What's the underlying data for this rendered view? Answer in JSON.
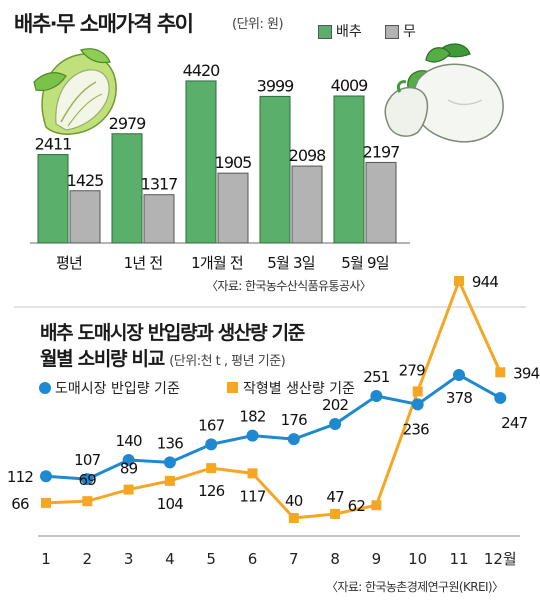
{
  "top": {
    "title": "배추·무 소매가격 추이",
    "unit": "(단위: 원)",
    "legend": [
      {
        "label": "배추",
        "color": "#5ab06a"
      },
      {
        "label": "무",
        "color": "#b3b3b3"
      }
    ],
    "source": "〈자료: 한국농수산식품유통공사〉",
    "colors": {
      "cabbage": "#5ab06a",
      "radish": "#b3b3b3",
      "cabbage_edge": "#2f6b3a",
      "radish_edge": "#555555"
    }
  },
  "bottom": {
    "title_line1": "배추 도매시장 반입량과 생산량 기준",
    "title_line2": "월별 소비량 비교",
    "unit": "(단위:천 t , 평년 기준)",
    "legend": [
      {
        "label": "도매시장 반입량 기준",
        "color": "#1e88d0",
        "marker": "circle"
      },
      {
        "label": "작형별 생산량 기준",
        "color": "#f5a623",
        "marker": "square"
      }
    ],
    "source": "〈자료: 한국농촌경제연구원(KREI)〉"
  },
  "chart_data": [
    {
      "type": "bar",
      "title": "배추·무 소매가격 추이",
      "ylabel": "(단위: 원)",
      "categories": [
        "평년",
        "1년 전",
        "1개월 전",
        "5월 3일",
        "5월 9일"
      ],
      "series": [
        {
          "name": "배추",
          "values": [
            2411,
            2979,
            4420,
            3999,
            4009
          ]
        },
        {
          "name": "무",
          "values": [
            1425,
            1317,
            1905,
            2098,
            2197
          ]
        }
      ],
      "ylim": [
        0,
        4500
      ],
      "grid": false,
      "legend_position": "top"
    },
    {
      "type": "line",
      "title": "배추 도매시장 반입량과 생산량 기준 월별 소비량 비교",
      "ylabel": "(단위:천 t , 평년 기준)",
      "categories": [
        "1",
        "2",
        "3",
        "4",
        "5",
        "6",
        "7",
        "8",
        "9",
        "10",
        "11",
        "12월"
      ],
      "series": [
        {
          "name": "도매시장 반입량 기준",
          "values": [
            112,
            107,
            140,
            136,
            167,
            182,
            176,
            202,
            251,
            236,
            378,
            247
          ]
        },
        {
          "name": "작형별 생산량 기준",
          "values": [
            66,
            69,
            89,
            104,
            126,
            117,
            40,
            47,
            62,
            279,
            944,
            394
          ]
        }
      ],
      "grid": false,
      "legend_position": "top-left"
    }
  ]
}
